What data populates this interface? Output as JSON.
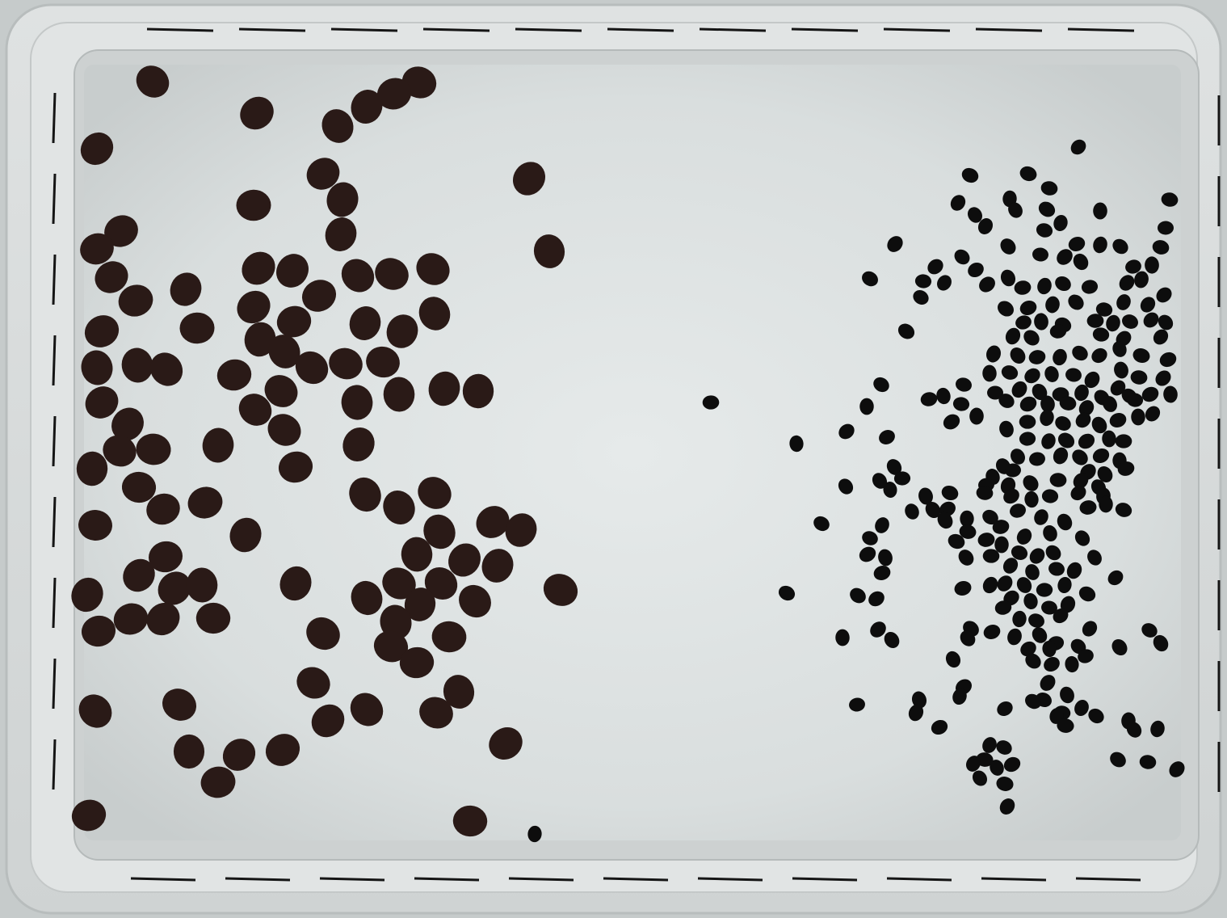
{
  "scene": {
    "subject": "seed-tray-photo",
    "colors": {
      "tray_outer": "#d3d6d6",
      "tray_rim": "#e3e5e5",
      "tray_inner_rim": "#c9cccc",
      "backlight": "#d7dcdc",
      "backlight_center": "#e4e8e8",
      "dash_marks": "#151515",
      "large_seed": "#2a1a17",
      "small_seed": "#0d0d0d"
    },
    "icons": {
      "large_seeds": "seed-icon",
      "small_seeds": "seed-icon"
    }
  }
}
